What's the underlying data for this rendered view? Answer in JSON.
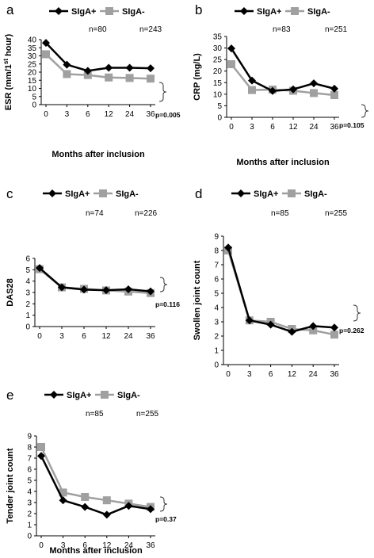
{
  "colors": {
    "sigA_pos": "#000000",
    "sigA_neg": "#a0a0a0",
    "axis": "#000000"
  },
  "chart_data": [
    {
      "type": "line",
      "panel_label": "a",
      "xlabel": "Months after inclusion",
      "ylabel": "ESR (mm/1st hour)",
      "ylabel_main": "ESR (mm/1",
      "ylabel_sup": "st",
      "ylabel_end": " hour)",
      "categories": [
        "0",
        "3",
        "6",
        "12",
        "24",
        "36"
      ],
      "ylim": [
        0,
        40
      ],
      "yticks": [
        "0",
        "5",
        "10",
        "15",
        "20",
        "25",
        "30",
        "35",
        "40"
      ],
      "series": [
        {
          "name": "SIgA+",
          "n": "n=80",
          "values": [
            38,
            24.6,
            20.8,
            22.7,
            22.7,
            22.4
          ]
        },
        {
          "name": "SIgA-",
          "n": "n=243",
          "values": [
            31,
            18.8,
            18.2,
            16.7,
            16.4,
            16
          ]
        }
      ],
      "pvalue": "p=0.005"
    },
    {
      "type": "line",
      "panel_label": "b",
      "xlabel": "Months after inclusion",
      "ylabel": "CRP (mg/L)",
      "categories": [
        "0",
        "3",
        "6",
        "12",
        "24",
        "36"
      ],
      "ylim": [
        0,
        35
      ],
      "yticks": [
        "0",
        "5",
        "10",
        "15",
        "20",
        "25",
        "30",
        "35"
      ],
      "series": [
        {
          "name": "SIgA+",
          "n": "n=83",
          "values": [
            29.8,
            15.9,
            11.4,
            12.1,
            14.7,
            12.4
          ]
        },
        {
          "name": "SIgA-",
          "n": "n=251",
          "values": [
            23,
            11.8,
            12,
            11.5,
            10.5,
            9.6
          ]
        }
      ],
      "pvalue": "p=0.105"
    },
    {
      "type": "line",
      "panel_label": "c",
      "xlabel": "",
      "ylabel": "DAS28",
      "categories": [
        "0",
        "3",
        "6",
        "12",
        "24",
        "36"
      ],
      "ylim": [
        0,
        6
      ],
      "yticks": [
        "0",
        "1",
        "2",
        "3",
        "4",
        "5",
        "6"
      ],
      "series": [
        {
          "name": "SIgA+",
          "n": "n=74",
          "values": [
            5.15,
            3.45,
            3.25,
            3.2,
            3.28,
            3.1
          ]
        },
        {
          "name": "SIgA-",
          "n": "n=226",
          "values": [
            5.05,
            3.45,
            3.32,
            3.18,
            3.08,
            2.95
          ]
        }
      ],
      "pvalue": "p=0.116"
    },
    {
      "type": "line",
      "panel_label": "d",
      "xlabel": "",
      "ylabel": "Swollen joint count",
      "categories": [
        "0",
        "3",
        "6",
        "12",
        "24",
        "36"
      ],
      "ylim": [
        0,
        9
      ],
      "yticks": [
        "0",
        "1",
        "2",
        "3",
        "4",
        "5",
        "6",
        "7",
        "8",
        "9"
      ],
      "series": [
        {
          "name": "SIgA+",
          "n": "n=85",
          "values": [
            8.2,
            3.1,
            2.8,
            2.3,
            2.7,
            2.6
          ]
        },
        {
          "name": "SIgA-",
          "n": "n=255",
          "values": [
            8,
            3.1,
            3,
            2.5,
            2.4,
            2.1
          ]
        }
      ],
      "pvalue": "p=0.262"
    },
    {
      "type": "line",
      "panel_label": "e",
      "xlabel": "Months after inclusion",
      "ylabel": "Tender joint count",
      "categories": [
        "0",
        "3",
        "6",
        "12",
        "24",
        "36"
      ],
      "ylim": [
        0,
        9
      ],
      "yticks": [
        "0",
        "1",
        "2",
        "3",
        "4",
        "5",
        "6",
        "7",
        "8",
        "9"
      ],
      "series": [
        {
          "name": "SIgA+",
          "n": "n=85",
          "values": [
            7.2,
            3.2,
            2.6,
            1.9,
            2.7,
            2.4
          ]
        },
        {
          "name": "SIgA-",
          "n": "n=255",
          "values": [
            8,
            3.9,
            3.5,
            3.2,
            2.9,
            2.6
          ]
        }
      ],
      "pvalue": "p=0.37"
    }
  ]
}
